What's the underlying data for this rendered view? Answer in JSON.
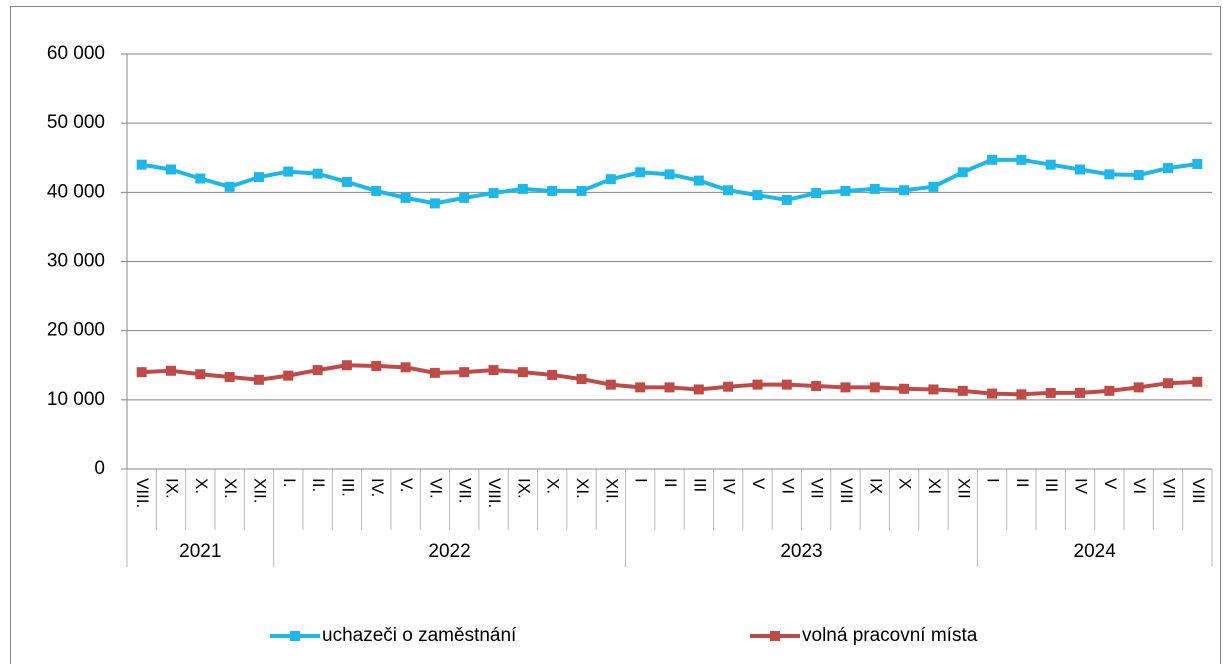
{
  "chart_data": {
    "type": "line",
    "categories": [
      "VIII.",
      "IX.",
      "X.",
      "XI.",
      "XII.",
      "I.",
      "II.",
      "III.",
      "IV.",
      "V.",
      "VI.",
      "VII.",
      "VIII.",
      "IX.",
      "X.",
      "XI.",
      "XII.",
      "I",
      "II",
      "III",
      "IV",
      "V",
      "VI",
      "VII",
      "VIII",
      "IX",
      "X",
      "XI",
      "XII",
      "I",
      "II",
      "III",
      "IV",
      "V",
      "VI",
      "VII",
      "VIII"
    ],
    "category_groups": [
      {
        "label": "2021",
        "size": 5
      },
      {
        "label": "2022",
        "size": 12
      },
      {
        "label": "2023",
        "size": 12
      },
      {
        "label": "2024",
        "size": 8
      }
    ],
    "series": [
      {
        "name": "uchazeči o zaměstnání",
        "color": "#1fb6e8",
        "values": [
          44000,
          43300,
          42000,
          40800,
          42200,
          43000,
          42700,
          41500,
          40200,
          39200,
          38400,
          39200,
          39900,
          40500,
          40200,
          40200,
          41900,
          42900,
          42600,
          41700,
          40300,
          39600,
          38900,
          39900,
          40200,
          40500,
          40300,
          40800,
          42900,
          44700,
          44700,
          44000,
          43300,
          42600,
          42500,
          43500,
          44100
        ]
      },
      {
        "name": "volná pracovní místa",
        "color": "#be4b48",
        "values": [
          14000,
          14200,
          13700,
          13300,
          12900,
          13500,
          14300,
          15000,
          14900,
          14700,
          13900,
          14000,
          14300,
          14000,
          13600,
          13000,
          12200,
          11800,
          11800,
          11500,
          11900,
          12200,
          12200,
          12000,
          11800,
          11800,
          11600,
          11500,
          11300,
          10900,
          10800,
          11000,
          11000,
          11300,
          11800,
          12400,
          12600
        ]
      }
    ],
    "ylim": [
      0,
      60000
    ],
    "yticks": [
      0,
      {
        "value": 10000,
        "label": "10 000"
      },
      {
        "value": 20000,
        "label": "20 000"
      },
      {
        "value": 30000,
        "label": "30 000"
      },
      {
        "value": 40000,
        "label": "40 000"
      },
      {
        "value": 50000,
        "label": "50 000"
      },
      {
        "value": 60000,
        "label": "60 000"
      }
    ],
    "grid": true,
    "legend": "bottom"
  }
}
